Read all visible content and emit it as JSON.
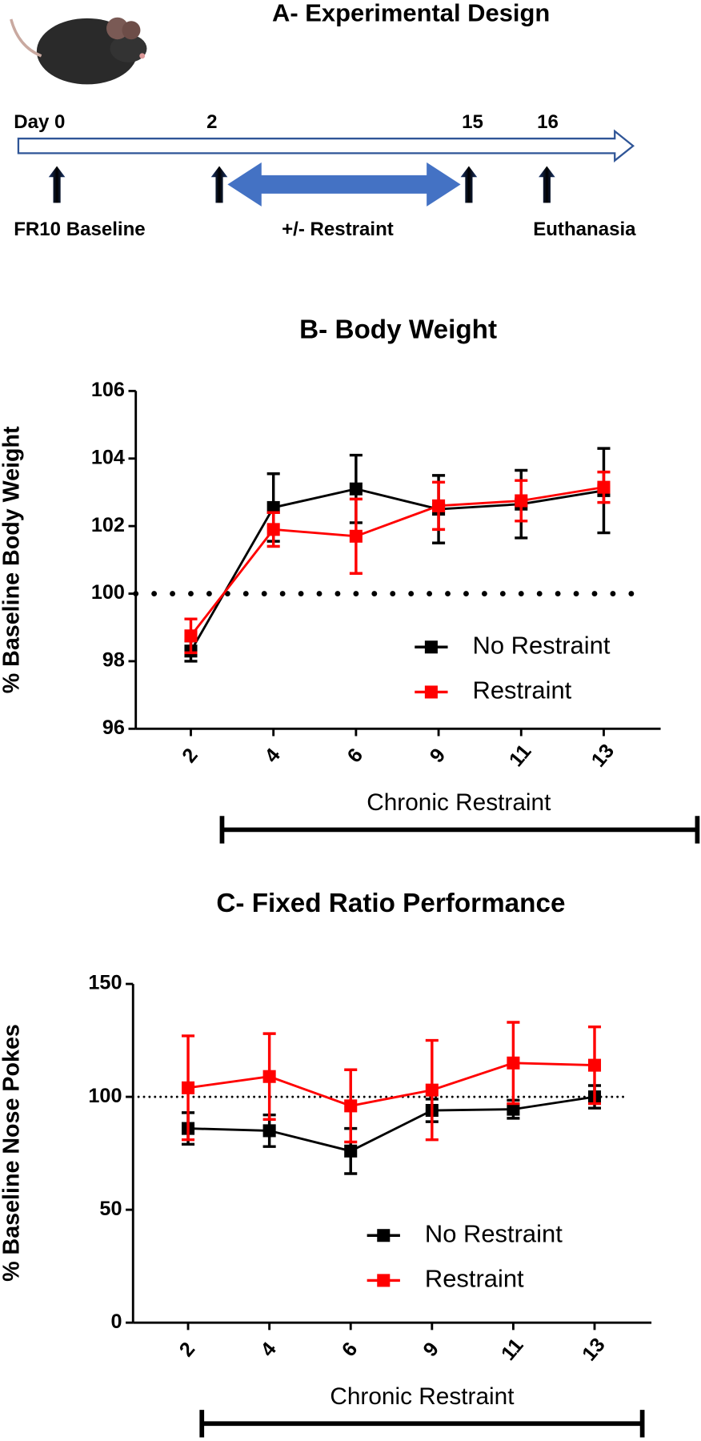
{
  "panel_a": {
    "title": "A- Experimental Design",
    "days": [
      "Day 0",
      "2",
      "15",
      "16"
    ],
    "labels": [
      "FR10 Baseline",
      "+/- Restraint",
      "Euthanasia"
    ]
  },
  "chart_data": [
    {
      "type": "line",
      "title": "B- Body Weight",
      "ylabel": "% Baseline Body Weight",
      "xlabel": "Chronic Restraint",
      "categories": [
        "2",
        "4",
        "6",
        "9",
        "11",
        "13"
      ],
      "ylim": [
        96,
        106
      ],
      "yticks": [
        96,
        98,
        100,
        102,
        104,
        106
      ],
      "reference": 100,
      "series": [
        {
          "name": "No Restraint",
          "color": "#000000",
          "values": [
            98.3,
            102.55,
            103.1,
            102.5,
            102.65,
            103.05
          ],
          "errors": [
            0.3,
            1.0,
            1.0,
            1.0,
            1.0,
            1.25
          ]
        },
        {
          "name": "Restraint",
          "color": "#ff0000",
          "values": [
            98.75,
            101.9,
            101.7,
            102.6,
            102.75,
            103.15
          ],
          "errors": [
            0.5,
            0.5,
            1.1,
            0.7,
            0.6,
            0.45
          ]
        }
      ]
    },
    {
      "type": "line",
      "title": "C- Fixed Ratio Performance",
      "ylabel": "% Baseline Nose Pokes",
      "xlabel": "Chronic Restraint",
      "categories": [
        "2",
        "4",
        "6",
        "9",
        "11",
        "13"
      ],
      "ylim": [
        0,
        150
      ],
      "yticks": [
        0,
        50,
        100,
        150
      ],
      "reference": 100,
      "series": [
        {
          "name": "No Restraint",
          "color": "#000000",
          "values": [
            86,
            85,
            76,
            94,
            94.5,
            100
          ],
          "errors": [
            7,
            7,
            10,
            5,
            4,
            5
          ]
        },
        {
          "name": "Restraint",
          "color": "#ff0000",
          "values": [
            104,
            109,
            96,
            103,
            115,
            114
          ],
          "errors": [
            23,
            19,
            16,
            22,
            18,
            17
          ]
        }
      ]
    }
  ]
}
